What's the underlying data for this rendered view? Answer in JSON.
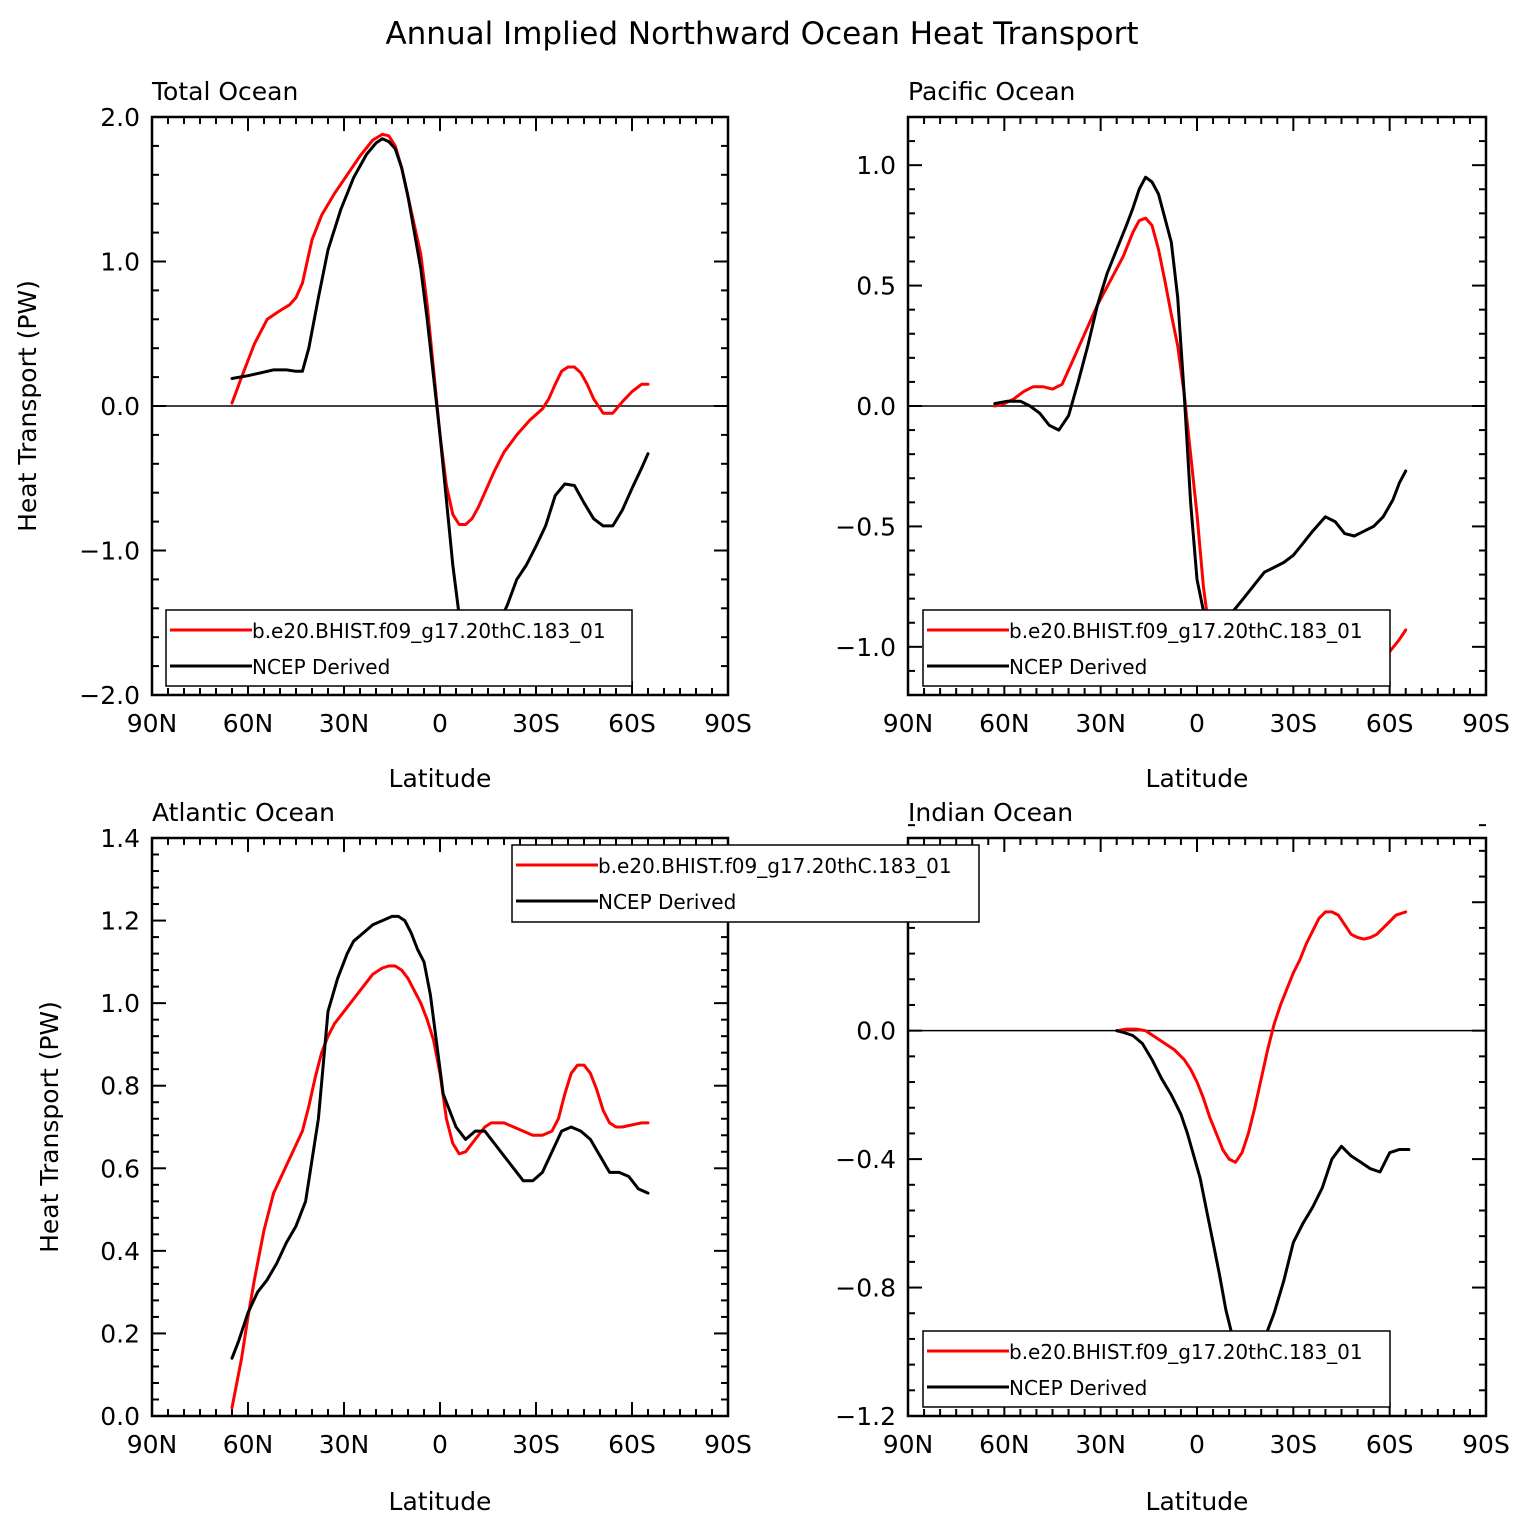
{
  "figure": {
    "title": "Annual Implied Northward Ocean Heat Transport"
  },
  "chart_data": [
    {
      "type": "line",
      "title": "Total Ocean",
      "xlabel": "Latitude",
      "ylabel": "Heat Transport (PW)",
      "xlim": [
        90,
        -90
      ],
      "ylim": [
        -2.0,
        2.0
      ],
      "xticks": [
        90,
        60,
        30,
        0,
        -30,
        -60,
        -90
      ],
      "xtick_labels": [
        "90N",
        "60N",
        "30N",
        "0",
        "30S",
        "60S",
        "90S"
      ],
      "yticks": [
        -2.0,
        -1.0,
        0.0,
        1.0,
        2.0
      ],
      "ytick_labels": [
        "−2.0",
        "−1.0",
        "0.0",
        "1.0",
        "2.0"
      ],
      "zero_line": true,
      "legend_position": "lower-left",
      "series": [
        {
          "name": "b.e20.BHIST.f09_g17.20thC.183_01",
          "color": "#ff0000",
          "x": [
            65,
            62,
            58,
            54,
            50,
            47,
            45,
            43,
            40,
            37,
            33,
            29,
            25,
            21,
            18,
            16,
            14,
            12,
            10,
            8,
            6,
            4,
            2,
            0,
            -2,
            -4,
            -6,
            -8,
            -10,
            -12,
            -14,
            -17,
            -20,
            -24,
            -28,
            -32,
            -34,
            -36,
            -38,
            -40,
            -42,
            -44,
            -46,
            -48,
            -51,
            -54,
            -57,
            -60,
            -63,
            -65
          ],
          "y": [
            0.02,
            0.2,
            0.43,
            0.6,
            0.66,
            0.7,
            0.75,
            0.85,
            1.15,
            1.32,
            1.47,
            1.6,
            1.73,
            1.84,
            1.88,
            1.87,
            1.8,
            1.65,
            1.45,
            1.25,
            1.05,
            0.7,
            0.25,
            -0.2,
            -0.55,
            -0.75,
            -0.82,
            -0.82,
            -0.78,
            -0.7,
            -0.6,
            -0.45,
            -0.32,
            -0.2,
            -0.1,
            -0.02,
            0.05,
            0.15,
            0.24,
            0.27,
            0.27,
            0.23,
            0.15,
            0.05,
            -0.05,
            -0.05,
            0.03,
            0.1,
            0.15,
            0.15
          ]
        },
        {
          "name": "NCEP Derived",
          "color": "#000000",
          "x": [
            65,
            60,
            56,
            52,
            48,
            45,
            43,
            41,
            38,
            35,
            31,
            27,
            23,
            20,
            18,
            16,
            14,
            12,
            10,
            8,
            6,
            4,
            2,
            0,
            -2,
            -4,
            -6,
            -8,
            -10,
            -12,
            -15,
            -18,
            -21,
            -24,
            -27,
            -30,
            -33,
            -36,
            -39,
            -42,
            -45,
            -48,
            -51,
            -54,
            -57,
            -60,
            -63,
            -65
          ],
          "y": [
            0.19,
            0.21,
            0.23,
            0.25,
            0.25,
            0.24,
            0.24,
            0.4,
            0.75,
            1.08,
            1.36,
            1.58,
            1.74,
            1.82,
            1.85,
            1.83,
            1.78,
            1.65,
            1.45,
            1.2,
            0.95,
            0.6,
            0.2,
            -0.2,
            -0.65,
            -1.1,
            -1.45,
            -1.62,
            -1.65,
            -1.67,
            -1.62,
            -1.52,
            -1.38,
            -1.2,
            -1.1,
            -0.97,
            -0.83,
            -0.62,
            -0.54,
            -0.55,
            -0.67,
            -0.78,
            -0.83,
            -0.83,
            -0.72,
            -0.57,
            -0.43,
            -0.33
          ]
        }
      ]
    },
    {
      "type": "line",
      "title": "Pacific Ocean",
      "xlabel": "Latitude",
      "ylabel": "",
      "xlim": [
        90,
        -90
      ],
      "ylim": [
        -1.2,
        1.2
      ],
      "xticks": [
        90,
        60,
        30,
        0,
        -30,
        -60,
        -90
      ],
      "xtick_labels": [
        "90N",
        "60N",
        "30N",
        "0",
        "30S",
        "60S",
        "90S"
      ],
      "yticks": [
        -1.0,
        -0.5,
        0.0,
        0.5,
        1.0
      ],
      "ytick_labels": [
        "−1.0",
        "−0.5",
        "0.0",
        "0.5",
        "1.0"
      ],
      "zero_line": true,
      "legend_position": "lower-left",
      "series": [
        {
          "name": "b.e20.BHIST.f09_g17.20thC.183_01",
          "color": "#ff0000",
          "x": [
            63,
            60,
            57,
            54,
            51,
            48,
            45,
            42,
            39,
            35,
            31,
            27,
            23,
            20,
            18,
            16,
            14,
            12,
            10,
            8,
            6,
            4,
            2,
            0,
            -2,
            -4,
            -6,
            -8,
            -10,
            -12,
            -14,
            -18,
            -22,
            -26,
            -30,
            -34,
            -38,
            -42,
            -45,
            -48,
            -51,
            -54,
            -57,
            -60,
            -63,
            -65
          ],
          "y": [
            0.0,
            0.01,
            0.03,
            0.06,
            0.08,
            0.08,
            0.07,
            0.09,
            0.18,
            0.3,
            0.42,
            0.52,
            0.62,
            0.72,
            0.77,
            0.78,
            0.75,
            0.65,
            0.52,
            0.38,
            0.25,
            0.05,
            -0.2,
            -0.45,
            -0.75,
            -0.95,
            -1.04,
            -1.07,
            -1.08,
            -1.08,
            -1.07,
            -1.06,
            -1.04,
            -1.01,
            -0.99,
            -0.96,
            -0.95,
            -0.95,
            -0.96,
            -0.99,
            -1.02,
            -1.05,
            -1.05,
            -1.02,
            -0.97,
            -0.93
          ]
        },
        {
          "name": "NCEP Derived",
          "color": "#000000",
          "x": [
            63,
            59,
            55,
            52,
            49,
            46,
            43,
            40,
            37,
            34,
            31,
            28,
            25,
            22,
            20,
            18,
            16,
            14,
            12,
            10,
            8,
            6,
            4,
            2,
            0,
            -2,
            -4,
            -6,
            -8,
            -10,
            -12,
            -15,
            -18,
            -21,
            -24,
            -27,
            -30,
            -33,
            -36,
            -40,
            -43,
            -46,
            -49,
            -52,
            -55,
            -58,
            -61,
            -63,
            -65
          ],
          "y": [
            0.01,
            0.02,
            0.02,
            0.0,
            -0.03,
            -0.08,
            -0.1,
            -0.04,
            0.1,
            0.25,
            0.42,
            0.55,
            0.65,
            0.75,
            0.82,
            0.9,
            0.95,
            0.93,
            0.88,
            0.78,
            0.68,
            0.45,
            0.05,
            -0.4,
            -0.72,
            -0.85,
            -0.9,
            -0.91,
            -0.91,
            -0.87,
            -0.84,
            -0.79,
            -0.74,
            -0.69,
            -0.67,
            -0.65,
            -0.62,
            -0.57,
            -0.52,
            -0.46,
            -0.48,
            -0.53,
            -0.54,
            -0.52,
            -0.5,
            -0.46,
            -0.39,
            -0.32,
            -0.27
          ]
        }
      ]
    },
    {
      "type": "line",
      "title": "Atlantic Ocean",
      "xlabel": "Latitude",
      "ylabel": "Heat Transport (PW)",
      "xlim": [
        90,
        -90
      ],
      "ylim": [
        0.0,
        1.4
      ],
      "xticks": [
        90,
        60,
        30,
        0,
        -30,
        -60,
        -90
      ],
      "xtick_labels": [
        "90N",
        "60N",
        "30N",
        "0",
        "30S",
        "60S",
        "90S"
      ],
      "yticks": [
        0.0,
        0.2,
        0.4,
        0.6,
        0.8,
        1.0,
        1.2,
        1.4
      ],
      "ytick_labels": [
        "0.0",
        "0.2",
        "0.4",
        "0.6",
        "0.8",
        "1.0",
        "1.2",
        "1.4"
      ],
      "zero_line": false,
      "legend_position": "top-right",
      "series": [
        {
          "name": "b.e20.BHIST.f09_g17.20thC.183_01",
          "color": "#ff0000",
          "x": [
            65,
            62,
            60,
            58,
            55,
            52,
            49,
            46,
            43,
            41,
            39,
            37,
            35,
            33,
            30,
            27,
            24,
            21,
            18,
            16,
            14,
            12,
            10,
            8,
            6,
            4,
            2,
            0,
            -2,
            -4,
            -6,
            -8,
            -10,
            -12,
            -14,
            -16,
            -18,
            -20,
            -23,
            -26,
            -29,
            -32,
            -35,
            -37,
            -39,
            -41,
            -43,
            -45,
            -47,
            -49,
            -51,
            -53,
            -55,
            -57,
            -60,
            -63,
            -65
          ],
          "y": [
            0.02,
            0.14,
            0.24,
            0.33,
            0.45,
            0.54,
            0.59,
            0.64,
            0.69,
            0.75,
            0.82,
            0.88,
            0.92,
            0.95,
            0.98,
            1.01,
            1.04,
            1.07,
            1.085,
            1.09,
            1.09,
            1.08,
            1.06,
            1.03,
            1.0,
            0.96,
            0.91,
            0.83,
            0.72,
            0.66,
            0.635,
            0.64,
            0.66,
            0.68,
            0.7,
            0.71,
            0.71,
            0.71,
            0.7,
            0.69,
            0.68,
            0.68,
            0.69,
            0.72,
            0.78,
            0.83,
            0.85,
            0.85,
            0.83,
            0.79,
            0.74,
            0.71,
            0.7,
            0.7,
            0.705,
            0.71,
            0.71
          ]
        },
        {
          "name": "NCEP Derived",
          "color": "#000000",
          "x": [
            65,
            63,
            60,
            57,
            54,
            51,
            48,
            45,
            42,
            40,
            38,
            35,
            32,
            29,
            27,
            24,
            21,
            18,
            15,
            13,
            11,
            9,
            7,
            5,
            3,
            1,
            -1,
            -3,
            -5,
            -8,
            -11,
            -14,
            -17,
            -20,
            -23,
            -26,
            -29,
            -32,
            -35,
            -38,
            -41,
            -44,
            -47,
            -50,
            -53,
            -56,
            -59,
            -62,
            -65
          ],
          "y": [
            0.14,
            0.18,
            0.25,
            0.3,
            0.33,
            0.37,
            0.42,
            0.46,
            0.52,
            0.62,
            0.72,
            0.98,
            1.06,
            1.12,
            1.15,
            1.17,
            1.19,
            1.2,
            1.21,
            1.21,
            1.2,
            1.17,
            1.13,
            1.1,
            1.02,
            0.9,
            0.78,
            0.74,
            0.7,
            0.67,
            0.69,
            0.69,
            0.66,
            0.63,
            0.6,
            0.57,
            0.57,
            0.59,
            0.64,
            0.69,
            0.7,
            0.69,
            0.67,
            0.63,
            0.59,
            0.59,
            0.58,
            0.55,
            0.54
          ]
        }
      ]
    },
    {
      "type": "line",
      "title": "Indian Ocean",
      "xlabel": "Latitude",
      "ylabel": "",
      "xlim": [
        90,
        -90
      ],
      "ylim": [
        -1.2,
        0.6
      ],
      "xticks": [
        90,
        60,
        30,
        0,
        -30,
        -60,
        -90
      ],
      "xtick_labels": [
        "90N",
        "60N",
        "30N",
        "0",
        "30S",
        "60S",
        "90S"
      ],
      "yticks": [
        -1.2,
        -0.8,
        -0.4,
        0.0,
        0.4
      ],
      "ytick_labels": [
        "−1.2",
        "−0.8",
        "−0.4",
        "0.0",
        "0.4"
      ],
      "zero_line": true,
      "legend_position": "lower-left",
      "series": [
        {
          "name": "b.e20.BHIST.f09_g17.20thC.183_01",
          "color": "#ff0000",
          "x": [
            25,
            22,
            19,
            16,
            13,
            10,
            7,
            4,
            2,
            0,
            -2,
            -4,
            -6,
            -8,
            -10,
            -12,
            -14,
            -16,
            -18,
            -20,
            -22,
            -24,
            -26,
            -28,
            -30,
            -32,
            -34,
            -36,
            -38,
            -40,
            -42,
            -44,
            -46,
            -48,
            -50,
            -52,
            -54,
            -56,
            -58,
            -60,
            -62,
            -65
          ],
          "y": [
            0.0,
            0.005,
            0.005,
            0.0,
            -0.02,
            -0.04,
            -0.06,
            -0.09,
            -0.12,
            -0.16,
            -0.21,
            -0.27,
            -0.32,
            -0.37,
            -0.4,
            -0.41,
            -0.38,
            -0.32,
            -0.24,
            -0.15,
            -0.06,
            0.02,
            0.08,
            0.13,
            0.18,
            0.22,
            0.27,
            0.31,
            0.35,
            0.37,
            0.37,
            0.36,
            0.33,
            0.3,
            0.29,
            0.285,
            0.29,
            0.3,
            0.32,
            0.34,
            0.36,
            0.37
          ]
        },
        {
          "name": "NCEP Derived",
          "color": "#000000",
          "x": [
            25,
            23,
            20,
            17,
            14,
            11,
            8,
            5,
            3,
            1,
            -1,
            -3,
            -5,
            -7,
            -9,
            -11,
            -13,
            -15,
            -17,
            -19,
            -21,
            -24,
            -27,
            -30,
            -33,
            -36,
            -39,
            -42,
            -45,
            -48,
            -51,
            -54,
            -57,
            -60,
            -63,
            -66
          ],
          "y": [
            0.0,
            -0.005,
            -0.015,
            -0.04,
            -0.09,
            -0.15,
            -0.2,
            -0.26,
            -0.32,
            -0.39,
            -0.46,
            -0.56,
            -0.66,
            -0.76,
            -0.87,
            -0.95,
            -1.01,
            -1.05,
            -1.03,
            -1.0,
            -0.96,
            -0.88,
            -0.78,
            -0.66,
            -0.6,
            -0.55,
            -0.49,
            -0.4,
            -0.36,
            -0.39,
            -0.41,
            -0.43,
            -0.44,
            -0.38,
            -0.37,
            -0.37
          ]
        }
      ]
    }
  ]
}
